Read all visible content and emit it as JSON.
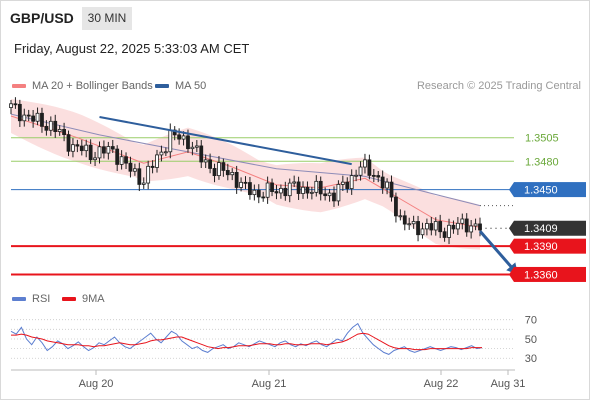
{
  "header": {
    "pair": "GBP/USD",
    "timeframe": "30 MIN",
    "datetime": "Friday, August 22, 2025 5:33:03 AM CET"
  },
  "legend": {
    "ma20_label": "MA 20 + Bollinger Bands",
    "ma50_label": "MA 50",
    "credit": "Research © 2025 Trading Central",
    "rsi_label": "RSI",
    "rsi_ma_label": "9MA"
  },
  "colors": {
    "ma20": "#f48080",
    "bollinger_fill": "#fbdfdf",
    "ma50": "#8e8cb8",
    "trendline": "#2e5e9c",
    "resistance": "#9acd68",
    "pivot": "#3070c0",
    "support": "#e8141c",
    "last_price": "#333333",
    "candle": "#1f1f1f",
    "rsi": "#5d7fd0",
    "rsi_ma": "#e8141c"
  },
  "chart_data": [
    {
      "type": "candlestick",
      "title": "GBP/USD",
      "timeframe": "30 MIN",
      "x_tick_labels": [
        "Aug 20",
        "Aug 21",
        "Aug 22",
        "Aug 31"
      ],
      "ylim": [
        1.3352,
        1.3545
      ],
      "levels": [
        {
          "name": "resistance_2",
          "value": 1.3505,
          "label": "1.3505",
          "style": "thin-green"
        },
        {
          "name": "resistance_1",
          "value": 1.348,
          "label": "1.3480",
          "style": "thin-green"
        },
        {
          "name": "pivot",
          "value": 1.345,
          "label": "1.3450",
          "style": "blue-tag"
        },
        {
          "name": "last_price",
          "value": 1.3409,
          "label": "1.3409",
          "style": "dark-tag"
        },
        {
          "name": "support_1",
          "value": 1.339,
          "label": "1.3390",
          "style": "red-tag"
        },
        {
          "name": "support_2",
          "value": 1.336,
          "label": "1.3360",
          "style": "red-tag"
        }
      ],
      "close_path": [
        {
          "t": 0,
          "c": 1.3537
        },
        {
          "t": 5,
          "c": 1.3524
        },
        {
          "t": 9,
          "c": 1.3518
        },
        {
          "t": 14,
          "c": 1.3496
        },
        {
          "t": 18,
          "c": 1.3488
        },
        {
          "t": 23,
          "c": 1.3492
        },
        {
          "t": 27,
          "c": 1.347
        },
        {
          "t": 30,
          "c": 1.346
        },
        {
          "t": 33,
          "c": 1.3483
        },
        {
          "t": 36,
          "c": 1.3507
        },
        {
          "t": 40,
          "c": 1.3502
        },
        {
          "t": 43,
          "c": 1.3482
        },
        {
          "t": 46,
          "c": 1.3472
        },
        {
          "t": 50,
          "c": 1.3466
        },
        {
          "t": 53,
          "c": 1.345
        },
        {
          "t": 56,
          "c": 1.3446
        },
        {
          "t": 60,
          "c": 1.3449
        },
        {
          "t": 63,
          "c": 1.3452
        },
        {
          "t": 66,
          "c": 1.3451
        },
        {
          "t": 70,
          "c": 1.3448
        },
        {
          "t": 73,
          "c": 1.3444
        },
        {
          "t": 76,
          "c": 1.3458
        },
        {
          "t": 79,
          "c": 1.3474
        },
        {
          "t": 82,
          "c": 1.3468
        },
        {
          "t": 85,
          "c": 1.345
        },
        {
          "t": 88,
          "c": 1.342
        },
        {
          "t": 91,
          "c": 1.3408
        },
        {
          "t": 94,
          "c": 1.3412
        },
        {
          "t": 97,
          "c": 1.3406
        },
        {
          "t": 100,
          "c": 1.341
        },
        {
          "t": 103,
          "c": 1.3414
        },
        {
          "t": 106,
          "c": 1.3409
        }
      ],
      "ma20_path": [
        {
          "t": 0,
          "v": 1.3528
        },
        {
          "t": 15,
          "v": 1.3505
        },
        {
          "t": 30,
          "v": 1.3478
        },
        {
          "t": 40,
          "v": 1.349
        },
        {
          "t": 50,
          "v": 1.3474
        },
        {
          "t": 60,
          "v": 1.3455
        },
        {
          "t": 70,
          "v": 1.3452
        },
        {
          "t": 80,
          "v": 1.3462
        },
        {
          "t": 88,
          "v": 1.344
        },
        {
          "t": 96,
          "v": 1.3418
        },
        {
          "t": 106,
          "v": 1.341
        }
      ],
      "ma50_path": [
        {
          "t": 0,
          "v": 1.353
        },
        {
          "t": 20,
          "v": 1.3508
        },
        {
          "t": 40,
          "v": 1.349
        },
        {
          "t": 60,
          "v": 1.3472
        },
        {
          "t": 80,
          "v": 1.3464
        },
        {
          "t": 95,
          "v": 1.3446
        },
        {
          "t": 106,
          "v": 1.3433
        }
      ],
      "ma50_projection": [
        1.3433,
        1.3433
      ],
      "trendline": [
        {
          "t": 20,
          "v": 1.3527
        },
        {
          "t": 77,
          "v": 1.3477
        }
      ],
      "forecast_arrow": [
        {
          "t": 106,
          "v": 1.3406
        },
        {
          "t": 114,
          "v": 1.3363
        }
      ]
    },
    {
      "type": "line",
      "title": "RSI",
      "x_tick_labels": [
        "Aug 20",
        "Aug 21",
        "Aug 22",
        "Aug 31"
      ],
      "ylim": [
        24,
        78
      ],
      "yticks": [
        30,
        50,
        70
      ],
      "guide_levels": [
        30,
        40,
        50,
        60,
        70
      ],
      "series": [
        {
          "name": "RSI",
          "values": [
            58,
            55,
            62,
            50,
            44,
            52,
            46,
            38,
            42,
            48,
            45,
            40,
            43,
            47,
            42,
            38,
            41,
            46,
            44,
            48,
            52,
            46,
            42,
            40,
            44,
            48,
            52,
            56,
            50,
            46,
            52,
            58,
            55,
            48,
            44,
            40,
            42,
            38,
            36,
            40,
            42,
            44,
            40,
            42,
            46,
            44,
            42,
            45,
            48,
            46,
            44,
            42,
            46,
            48,
            44,
            42,
            45,
            43,
            46,
            48,
            44,
            42,
            46,
            50,
            48,
            56,
            62,
            66,
            56,
            50,
            44,
            40,
            36,
            34,
            38,
            40,
            42,
            38,
            36,
            38,
            40,
            42,
            40,
            38,
            40,
            42,
            41,
            39,
            41,
            43,
            40,
            41
          ],
          "color": "#5d7fd0"
        },
        {
          "name": "9MA",
          "values": [
            54,
            54,
            55,
            54,
            52,
            51,
            50,
            48,
            47,
            46,
            45,
            44,
            44,
            44,
            43,
            43,
            42,
            43,
            43,
            44,
            45,
            46,
            45,
            44,
            44,
            45,
            46,
            48,
            49,
            49,
            50,
            51,
            52,
            52,
            50,
            48,
            46,
            44,
            42,
            41,
            40,
            41,
            41,
            42,
            43,
            43,
            43,
            44,
            45,
            45,
            45,
            44,
            44,
            45,
            45,
            44,
            44,
            44,
            45,
            45,
            45,
            44,
            45,
            46,
            47,
            49,
            52,
            55,
            56,
            55,
            52,
            49,
            46,
            43,
            41,
            40,
            40,
            40,
            39,
            39,
            39,
            40,
            40,
            40,
            40,
            40,
            40,
            40,
            40,
            41,
            41,
            41
          ],
          "color": "#e8141c"
        }
      ]
    }
  ]
}
